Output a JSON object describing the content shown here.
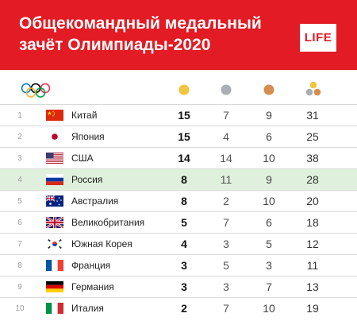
{
  "header": {
    "title_line1": "Общекомандный медальный",
    "title_line2": "зачёт Олимпиады-2020",
    "logo": "LIFE"
  },
  "colors": {
    "brand_red": "#e21b24",
    "highlight_row": "#dff1dc",
    "gold": "#f3c43e",
    "silver": "#a9afb4",
    "bronze": "#d58e4f"
  },
  "columns": {
    "olympic_icon": "olympic-rings-icon",
    "gold_icon": "gold-medal-icon",
    "silver_icon": "silver-medal-icon",
    "bronze_icon": "bronze-medal-icon",
    "total_icon": "medals-total-icon"
  },
  "rows": [
    {
      "rank": "1",
      "country": "Китай",
      "flag": "china",
      "gold": "15",
      "silver": "7",
      "bronze": "9",
      "total": "31"
    },
    {
      "rank": "2",
      "country": "Япония",
      "flag": "japan",
      "gold": "15",
      "silver": "4",
      "bronze": "6",
      "total": "25"
    },
    {
      "rank": "3",
      "country": "США",
      "flag": "usa",
      "gold": "14",
      "silver": "14",
      "bronze": "10",
      "total": "38"
    },
    {
      "rank": "4",
      "country": "Россия",
      "flag": "russia",
      "gold": "8",
      "silver": "11",
      "bronze": "9",
      "total": "28",
      "highlight": true
    },
    {
      "rank": "5",
      "country": "Австралия",
      "flag": "australia",
      "gold": "8",
      "silver": "2",
      "bronze": "10",
      "total": "20"
    },
    {
      "rank": "6",
      "country": "Великобритания",
      "flag": "uk",
      "gold": "5",
      "silver": "7",
      "bronze": "6",
      "total": "18"
    },
    {
      "rank": "7",
      "country": "Южная Корея",
      "flag": "korea",
      "gold": "4",
      "silver": "3",
      "bronze": "5",
      "total": "12"
    },
    {
      "rank": "8",
      "country": "Франция",
      "flag": "france",
      "gold": "3",
      "silver": "5",
      "bronze": "3",
      "total": "11"
    },
    {
      "rank": "9",
      "country": "Германия",
      "flag": "germany",
      "gold": "3",
      "silver": "3",
      "bronze": "7",
      "total": "13"
    },
    {
      "rank": "10",
      "country": "Италия",
      "flag": "italy",
      "gold": "2",
      "silver": "7",
      "bronze": "10",
      "total": "19"
    }
  ]
}
